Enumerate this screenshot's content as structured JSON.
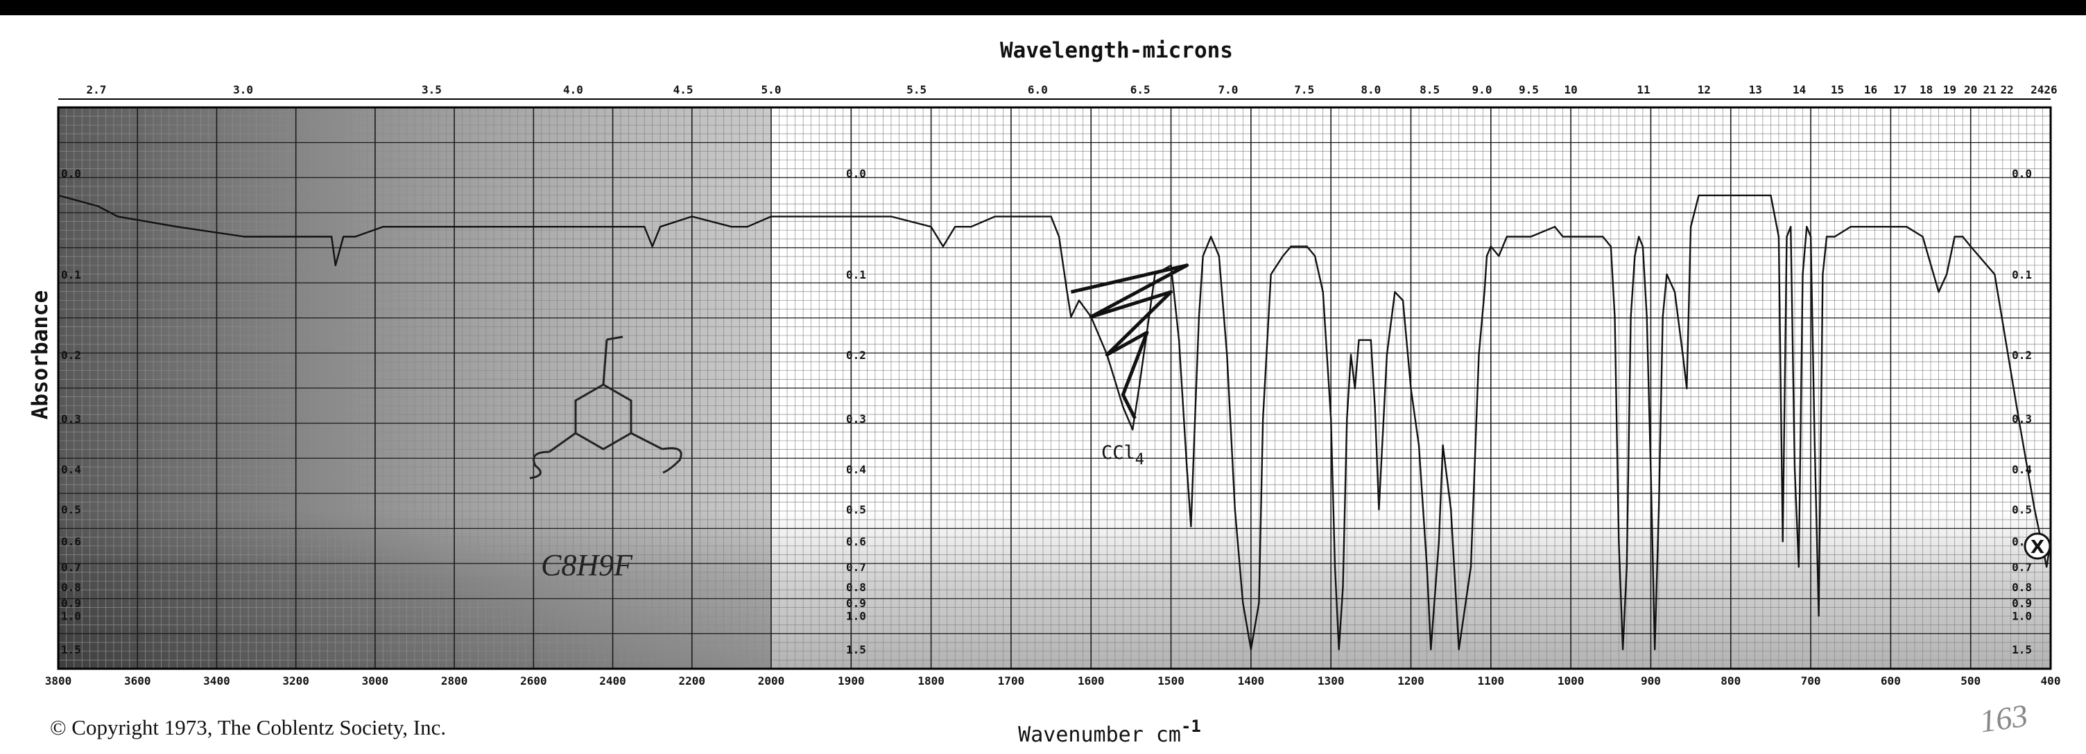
{
  "chart_data": {
    "type": "line",
    "title": "Wavelength-microns",
    "xlabel": "Wavenumber cm",
    "xlabel_superscript": "-1",
    "ylabel": "Absorbance",
    "x_reversed": true,
    "x_scale": "piecewise-linear (3800-2000: 200 cm-1 major; 2000-400: 100 cm-1 major)",
    "y_scale": "log",
    "xlim": [
      3800,
      400
    ],
    "ylim": [
      0.0,
      1.5
    ],
    "grid": true,
    "x_tick_labels": [
      "3800",
      "3600",
      "3400",
      "3200",
      "3000",
      "2800",
      "2600",
      "2400",
      "2200",
      "2000",
      "1900",
      "1800",
      "1700",
      "1600",
      "1500",
      "1400",
      "1300",
      "1200",
      "1100",
      "1000",
      "900",
      "800",
      "700",
      "600",
      "500",
      "400"
    ],
    "y_tick_labels": [
      "0.0",
      "0.1",
      "0.2",
      "0.3",
      "0.4",
      "0.5",
      "0.6",
      "0.7",
      "0.8",
      "0.9",
      "1.0",
      "1.5"
    ],
    "top_axis_tick_labels": [
      "2.7",
      "3.0",
      "3.5",
      "4.0",
      "4.5",
      "5.0",
      "5.5",
      "6.0",
      "6.5",
      "7.0",
      "7.5",
      "8.0",
      "8.5",
      "9.0",
      "9.5",
      "10",
      "11",
      "12",
      "13",
      "14",
      "15",
      "16",
      "17",
      "18",
      "19",
      "20",
      "21",
      "22",
      "24",
      "26"
    ],
    "series": [
      {
        "x": [
          3800,
          3700,
          3650,
          3500,
          3330,
          3300,
          3200,
          3110,
          3100,
          3080,
          3050,
          2980,
          2950,
          2800,
          2700,
          2600,
          2550,
          2500,
          2400,
          2320,
          2300,
          2280,
          2200,
          2100,
          2060,
          2000,
          1950,
          1900,
          1850,
          1800,
          1785,
          1770,
          1750,
          1720,
          1700,
          1680,
          1650,
          1640,
          1630,
          1625,
          1615,
          1600,
          1580,
          1560,
          1548,
          1540,
          1520,
          1500,
          1490,
          1480,
          1475,
          1470,
          1465,
          1460,
          1450,
          1440,
          1430,
          1420,
          1410,
          1400,
          1390,
          1385,
          1375,
          1360,
          1350,
          1340,
          1330,
          1320,
          1310,
          1300,
          1295,
          1290,
          1285,
          1280,
          1275,
          1270,
          1265,
          1250,
          1245,
          1240,
          1230,
          1220,
          1210,
          1200,
          1190,
          1180,
          1175,
          1165,
          1160,
          1150,
          1140,
          1125,
          1115,
          1108,
          1105,
          1100,
          1090,
          1080,
          1050,
          1020,
          1010,
          1000,
          980,
          960,
          950,
          945,
          940,
          935,
          930,
          925,
          920,
          915,
          910,
          905,
          900,
          895,
          890,
          885,
          880,
          870,
          860,
          855,
          850,
          840,
          820,
          800,
          780,
          750,
          740,
          735,
          730,
          725,
          720,
          715,
          710,
          705,
          700,
          695,
          690,
          685,
          680,
          670,
          650,
          620,
          600,
          580,
          560,
          540,
          530,
          520,
          510,
          500,
          470,
          440,
          420,
          405,
          400
        ],
        "y": [
          0.02,
          0.03,
          0.04,
          0.05,
          0.06,
          0.06,
          0.06,
          0.06,
          0.09,
          0.06,
          0.06,
          0.05,
          0.05,
          0.05,
          0.05,
          0.05,
          0.05,
          0.05,
          0.05,
          0.05,
          0.07,
          0.05,
          0.04,
          0.05,
          0.05,
          0.04,
          0.04,
          0.04,
          0.04,
          0.05,
          0.07,
          0.05,
          0.05,
          0.04,
          0.04,
          0.04,
          0.04,
          0.06,
          0.12,
          0.15,
          0.13,
          0.15,
          0.2,
          0.28,
          0.32,
          0.25,
          0.1,
          0.09,
          0.18,
          0.4,
          0.55,
          0.3,
          0.15,
          0.08,
          0.06,
          0.08,
          0.2,
          0.5,
          0.9,
          1.5,
          0.9,
          0.3,
          0.1,
          0.08,
          0.07,
          0.07,
          0.07,
          0.08,
          0.12,
          0.3,
          0.7,
          1.5,
          0.8,
          0.3,
          0.2,
          0.25,
          0.18,
          0.18,
          0.28,
          0.5,
          0.2,
          0.12,
          0.13,
          0.25,
          0.35,
          0.7,
          1.5,
          0.6,
          0.35,
          0.5,
          1.5,
          0.7,
          0.2,
          0.12,
          0.08,
          0.07,
          0.08,
          0.06,
          0.06,
          0.05,
          0.06,
          0.06,
          0.06,
          0.06,
          0.07,
          0.15,
          0.6,
          1.5,
          0.7,
          0.15,
          0.08,
          0.06,
          0.07,
          0.15,
          0.4,
          1.5,
          0.5,
          0.15,
          0.1,
          0.12,
          0.2,
          0.25,
          0.05,
          0.02,
          0.02,
          0.02,
          0.02,
          0.02,
          0.06,
          0.6,
          0.06,
          0.05,
          0.4,
          0.7,
          0.1,
          0.05,
          0.06,
          0.35,
          1.0,
          0.1,
          0.06,
          0.06,
          0.05,
          0.05,
          0.05,
          0.05,
          0.06,
          0.12,
          0.1,
          0.06,
          0.06,
          0.07,
          0.1,
          0.3,
          0.5,
          0.7,
          0.6
        ]
      }
    ],
    "annotations": {
      "solvent_band": "CCl",
      "solvent_band_subscript": "4",
      "handwritten_formula": "C8H9F",
      "circled_marker": "X"
    }
  },
  "footer": {
    "copyright": "© Copyright 1973, The Coblentz Society, Inc.",
    "catalog_number": "163"
  },
  "colors": {
    "ink": "#111111",
    "grid_fine": "#8a8a8a",
    "grid_major": "#1a1a1a",
    "shade_left": "#5a5a5a",
    "background": "#ffffff",
    "top_bar": "#000000"
  }
}
